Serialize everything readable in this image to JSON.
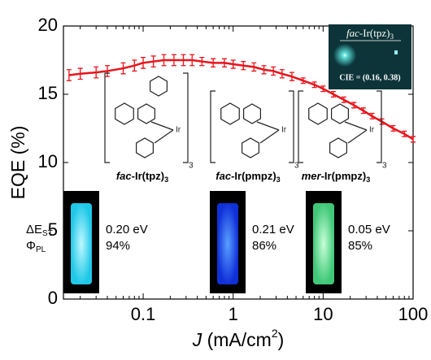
{
  "chart_data": {
    "type": "line",
    "x_label": {
      "italic": "J",
      "text": " (mA/cm",
      "sup": "2",
      "end": ")"
    },
    "y_label": "EQE (%)",
    "log_x": true,
    "xlim": [
      0.013,
      100
    ],
    "xticks": [
      0.1,
      1,
      10,
      100
    ],
    "ylim": [
      0,
      20
    ],
    "yticks": [
      0,
      5,
      10,
      15,
      20
    ],
    "series": [
      {
        "color": "#e8141b",
        "x": [
          0.015,
          0.02,
          0.03,
          0.04,
          0.06,
          0.08,
          0.1,
          0.13,
          0.17,
          0.22,
          0.28,
          0.35,
          0.45,
          0.6,
          0.8,
          1,
          1.3,
          1.7,
          2.2,
          2.8,
          3.5,
          4.5,
          6,
          8,
          10,
          13,
          17,
          22,
          28,
          35,
          45,
          60,
          80,
          100
        ],
        "values": [
          16.4,
          16.5,
          16.6,
          16.7,
          16.9,
          17.1,
          17.3,
          17.4,
          17.5,
          17.5,
          17.5,
          17.5,
          17.4,
          17.3,
          17.3,
          17.2,
          17.1,
          17.0,
          16.8,
          16.7,
          16.5,
          16.3,
          16.0,
          15.7,
          15.4,
          15.0,
          14.6,
          14.2,
          13.8,
          13.4,
          13.0,
          12.5,
          12.1,
          11.7
        ],
        "errors": [
          0.4,
          0.4,
          0.4,
          0.4,
          0.4,
          0.4,
          0.4,
          0.4,
          0.4,
          0.4,
          0.4,
          0.4,
          0.3,
          0.3,
          0.3,
          0.3,
          0.3,
          0.3,
          0.3,
          0.3,
          0.3,
          0.3,
          0.2,
          0.2,
          0.2,
          0.2,
          0.2,
          0.2,
          0.2,
          0.2,
          0.2,
          0.2,
          0.2,
          0.2
        ]
      }
    ],
    "inset": {
      "compound": {
        "prefix": "fac",
        "body": "-Ir(tpz)",
        "sub": "3"
      },
      "cie": "CIE = (0.16, 0.38)"
    },
    "compounds": [
      {
        "prefix": "fac",
        "body": "-Ir(tpz)",
        "sub": "3",
        "gap": "0.20 eV",
        "plqy": "94%"
      },
      {
        "prefix": "fac",
        "body": "-Ir(pmpz)",
        "sub": "3",
        "gap": "0.21 eV",
        "plqy": "86%"
      },
      {
        "prefix": "mer",
        "body": "-Ir(pmpz)",
        "sub": "3",
        "gap": "0.05 eV",
        "plqy": "85%"
      }
    ],
    "row_labels": {
      "gap": {
        "main": "ΔE",
        "sub": "ST"
      },
      "plqy": {
        "main": "Φ",
        "sub": "PL"
      }
    }
  }
}
